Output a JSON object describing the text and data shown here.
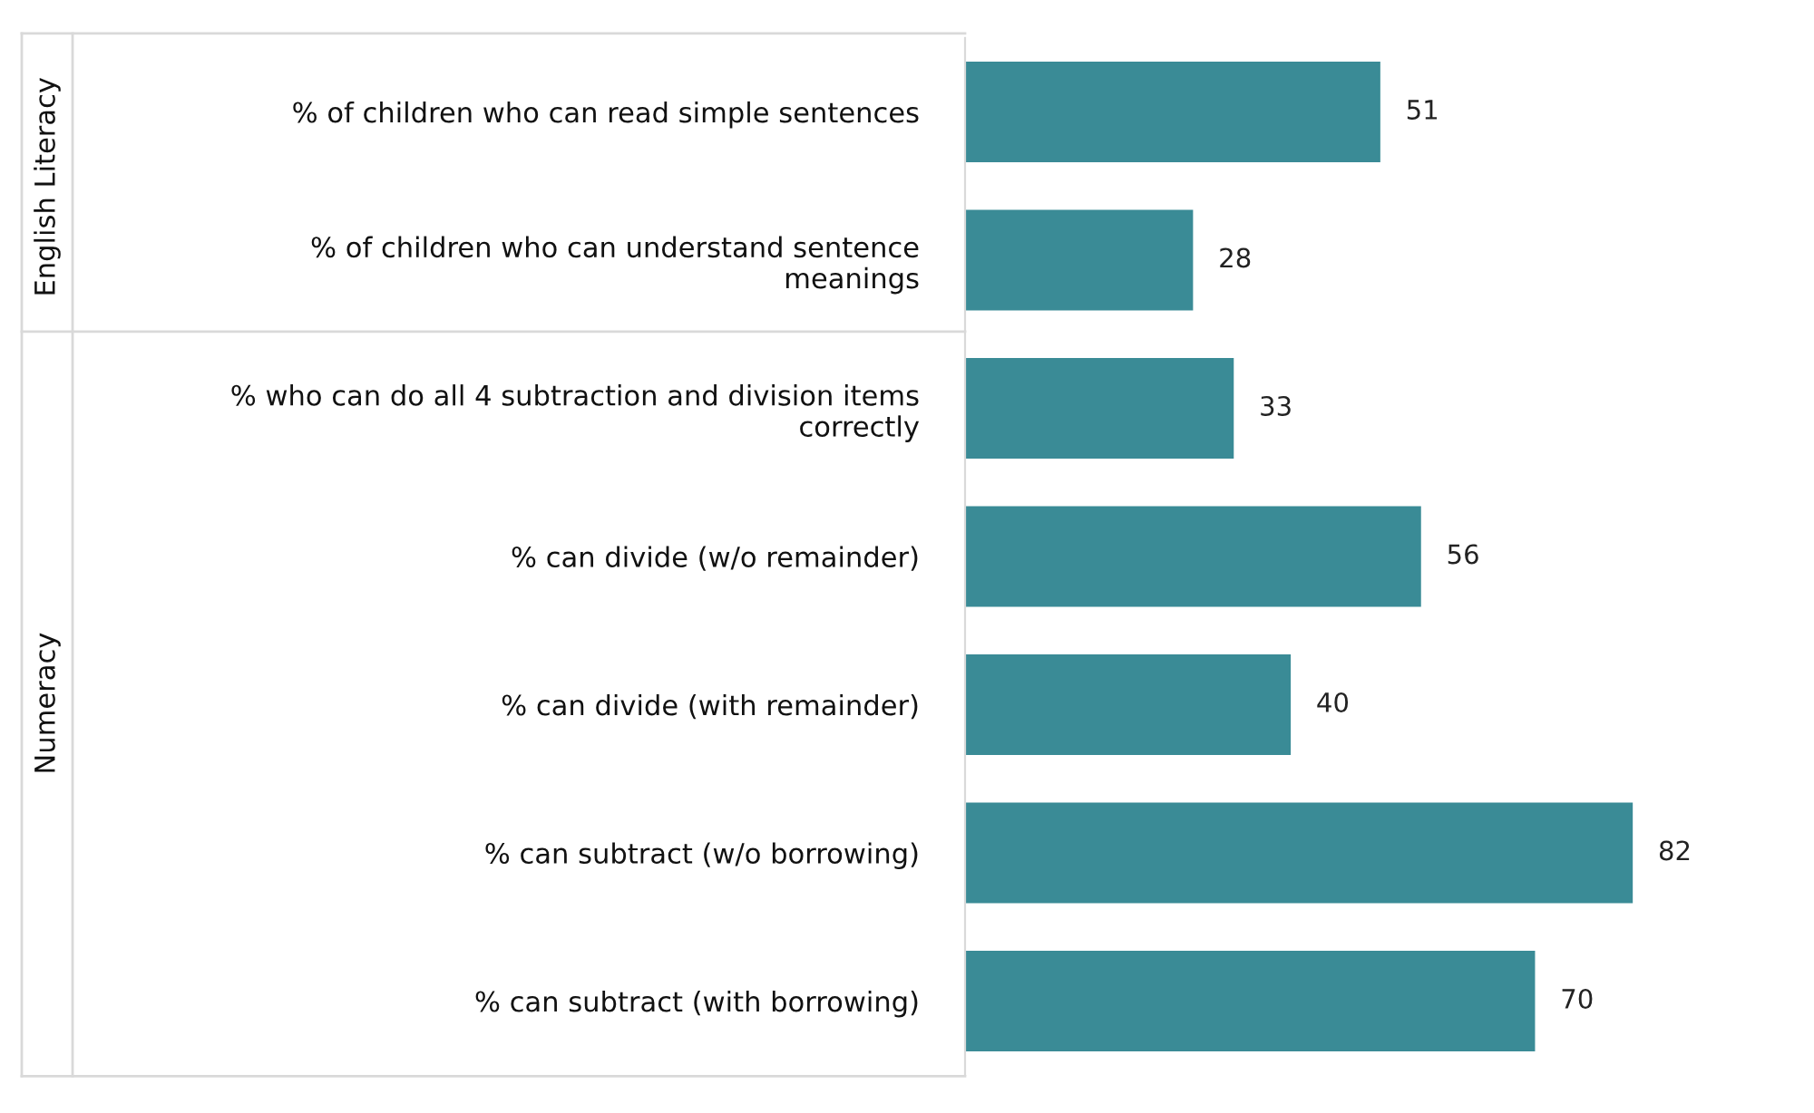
{
  "chart_data": {
    "type": "bar",
    "orientation": "horizontal",
    "categories": [
      "% of children who can read simple sentences",
      "% of children who can understand sentence meanings",
      "% who can do all 4 subtraction and division items correctly",
      "% can divide (w/o remainder)",
      "% can divide (with remainder)",
      "% can subtract (w/o borrowing)",
      "% can subtract (with borrowing)"
    ],
    "values": [
      51,
      28,
      33,
      56,
      40,
      82,
      70
    ],
    "color": "#3a8b96",
    "data_labels": true,
    "relative": false,
    "annotations": [
      "English Literacy",
      "Numeracy"
    ]
  }
}
